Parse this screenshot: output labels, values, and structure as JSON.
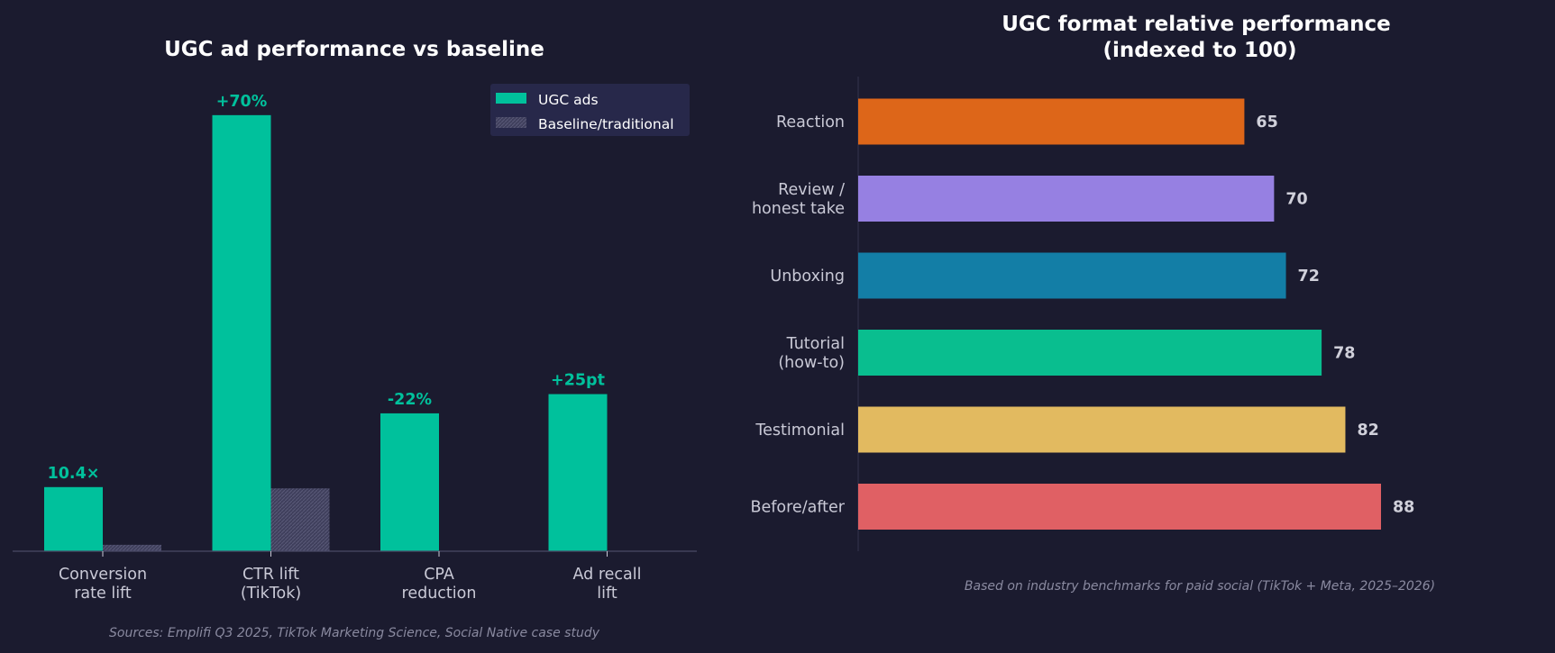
{
  "colors": {
    "background": "#1b1b2f",
    "ugc": "#00c19c",
    "baseline": "#3f3f5c",
    "axis": "#4a4a66",
    "text": "#c9c9d6",
    "legend_bg": "#27284a"
  },
  "chart_data": [
    {
      "type": "bar",
      "title": "UGC ad performance vs baseline",
      "categories": [
        [
          "Conversion",
          "rate lift"
        ],
        [
          "CTR lift",
          "(TikTok)"
        ],
        [
          "CPA",
          "reduction"
        ],
        [
          "Ad recall",
          "lift"
        ]
      ],
      "series": [
        {
          "name": "UGC ads",
          "values": [
            1.0,
            6.8,
            2.15,
            2.45
          ],
          "color": "#00c19c"
        },
        {
          "name": "Baseline/traditional",
          "values": [
            0.1,
            0.98,
            0,
            0
          ],
          "color": "#3f3f5c",
          "hatched": true
        }
      ],
      "data_labels": [
        "10.4×",
        "+70%",
        "-22%",
        "+25pt"
      ],
      "ylim": [
        0,
        7.5
      ],
      "legend": "top-right",
      "grid": false,
      "source_note": "Sources: Emplifi Q3 2025, TikTok Marketing Science, Social Native case study"
    },
    {
      "type": "bar",
      "orientation": "horizontal",
      "title": [
        "UGC format relative performance",
        "(indexed to 100)"
      ],
      "categories": [
        [
          "Reaction"
        ],
        [
          "Review /",
          "honest take"
        ],
        [
          "Unboxing"
        ],
        [
          "Tutorial",
          "(how-to)"
        ],
        [
          "Testimonial"
        ],
        [
          "Before/after"
        ]
      ],
      "values": [
        65,
        70,
        72,
        78,
        82,
        88
      ],
      "value_labels": [
        "65",
        "70",
        "72",
        "78",
        "82",
        "88"
      ],
      "colors": [
        "#dd6619",
        "#9680e2",
        "#137ea6",
        "#09be8f",
        "#e2ba60",
        "#e06064"
      ],
      "xlim": [
        0,
        100
      ],
      "grid": false,
      "note": "Based on industry benchmarks for paid social (TikTok + Meta, 2025–2026)"
    }
  ]
}
